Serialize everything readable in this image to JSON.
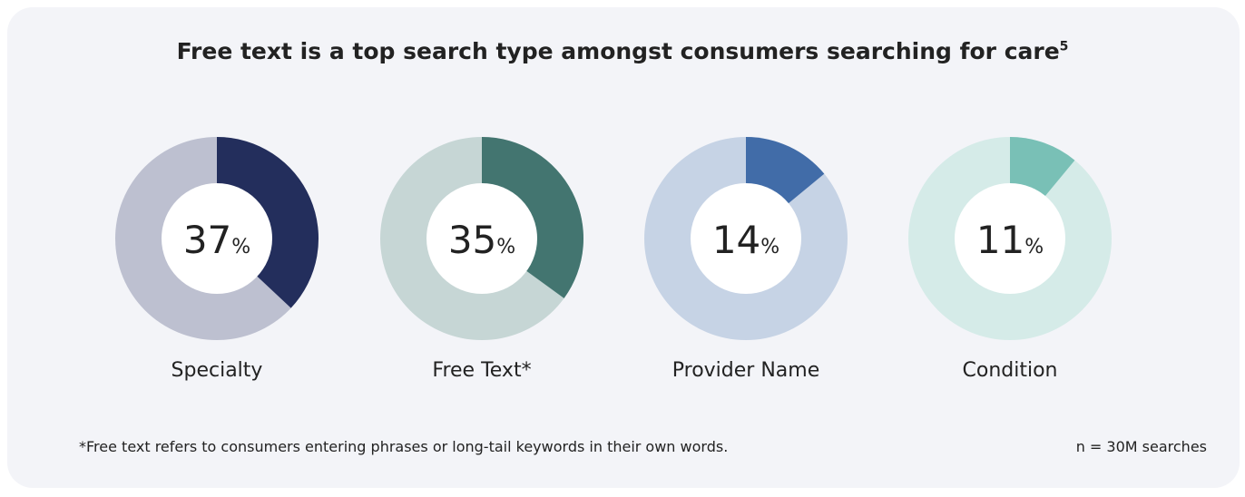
{
  "chart_data": {
    "type": "pie",
    "variant": "donut",
    "title": "Free text is a top search type amongst consumers searching for care",
    "title_superscript": "5",
    "charts": [
      {
        "label": "Specialty",
        "value": 37,
        "value_text": "37",
        "color": "#232e5c",
        "track_color": "#bdc0d0"
      },
      {
        "label": "Free Text*",
        "value": 35,
        "value_text": "35",
        "color": "#437570",
        "track_color": "#c6d6d5"
      },
      {
        "label": "Provider Name",
        "value": 14,
        "value_text": "14",
        "color": "#416ca8",
        "track_color": "#c6d3e5"
      },
      {
        "label": "Condition",
        "value": 11,
        "value_text": "11",
        "color": "#79c0b6",
        "track_color": "#d5ebe8"
      }
    ],
    "unit": "%",
    "footnote": "*Free text refers to consumers entering phrases or long-tail keywords in their own words.",
    "sample_note": "n = 30M searches"
  }
}
